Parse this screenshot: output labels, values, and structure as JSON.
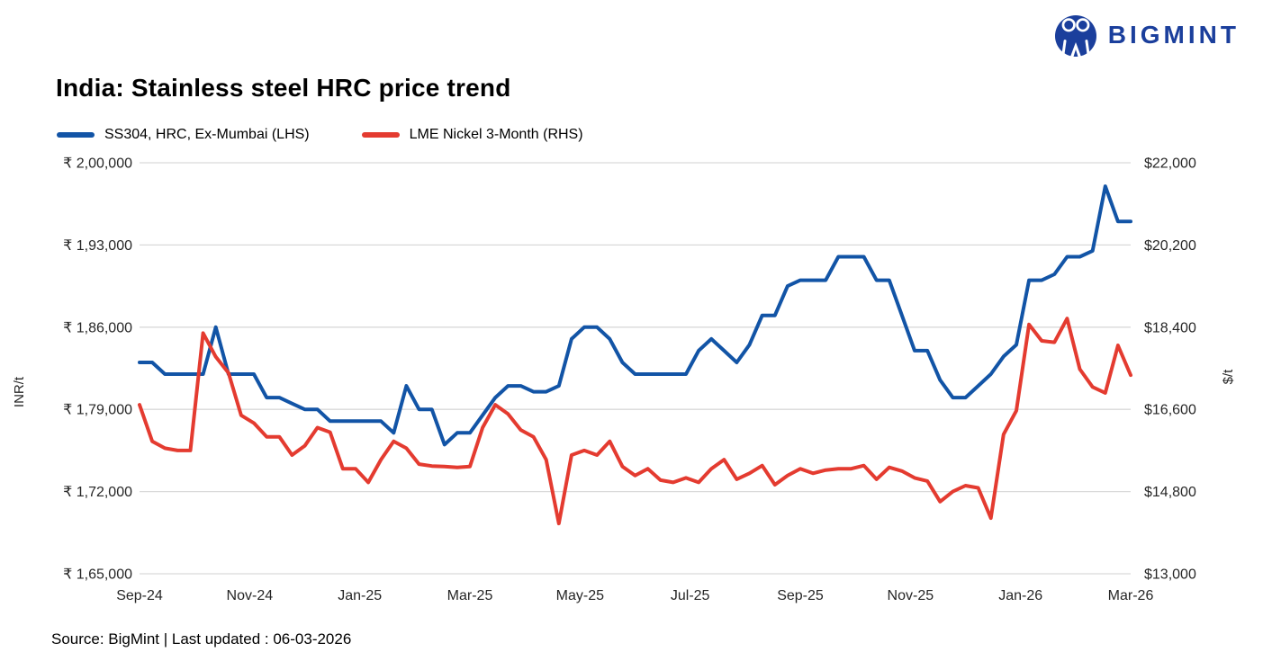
{
  "logo": {
    "text": "BIGMINT"
  },
  "footer": {
    "source": "Source: BigMint | Last updated : 06-03-2026"
  },
  "colors": {
    "line_blue": "#1254a6",
    "line_red": "#e43b30",
    "logo_navy": "#1b3f9c",
    "gridline": "#d9d9d9",
    "axis_text": "#262626"
  },
  "chart_data": {
    "type": "line",
    "title": "India: Stainless steel HRC price trend",
    "x_tick_labels": [
      "Sep-24",
      "Nov-24",
      "Jan-25",
      "Mar-25",
      "May-25",
      "Jul-25",
      "Sep-25",
      "Nov-25",
      "Jan-26",
      "Mar-26"
    ],
    "x_frequency": "weekly",
    "grid": true,
    "legend_position": "top-left",
    "left_axis": {
      "label": "INR/t",
      "min": 165000,
      "max": 200000,
      "tick_values": [
        200000,
        193000,
        186000,
        179000,
        172000,
        165000
      ],
      "tick_labels": [
        "₹ 2,00,000",
        "₹ 1,93,000",
        "₹ 1,86,000",
        "₹ 1,79,000",
        "₹ 1,72,000",
        "₹ 1,65,000"
      ]
    },
    "right_axis": {
      "label": "$/t",
      "min": 13000,
      "max": 22000,
      "tick_values": [
        22000,
        20200,
        18400,
        16600,
        14800,
        13000
      ],
      "tick_labels": [
        "$22,000",
        "$20,200",
        "$18,400",
        "$16,600",
        "$14,800",
        "$13,000"
      ]
    },
    "series": [
      {
        "id": "ss304-hrc",
        "name": "SS304, HRC, Ex-Mumbai (LHS)",
        "axis": "left",
        "color": "#1254a6",
        "values": [
          183000,
          183000,
          182000,
          182000,
          182000,
          182000,
          186000,
          182000,
          182000,
          182000,
          180000,
          180000,
          179500,
          179000,
          179000,
          178000,
          178000,
          178000,
          178000,
          178000,
          177000,
          181000,
          179000,
          179000,
          176000,
          177000,
          177000,
          178500,
          180000,
          181000,
          181000,
          180500,
          180500,
          181000,
          185000,
          186000,
          186000,
          185000,
          183000,
          182000,
          182000,
          182000,
          182000,
          182000,
          184000,
          185000,
          184000,
          183000,
          184500,
          187000,
          187000,
          189500,
          190000,
          190000,
          190000,
          192000,
          192000,
          192000,
          190000,
          190000,
          187000,
          184000,
          184000,
          181500,
          180000,
          180000,
          181000,
          182000,
          183500,
          184500,
          190000,
          190000,
          190500,
          192000,
          192000,
          192500,
          198000,
          195000,
          195000
        ]
      },
      {
        "id": "lme-nickel",
        "name": "LME Nickel 3-Month (RHS)",
        "axis": "right",
        "color": "#e43b30",
        "values": [
          16700,
          15900,
          15750,
          15700,
          15700,
          18270,
          17750,
          17400,
          16470,
          16300,
          16000,
          16000,
          15600,
          15800,
          16200,
          16100,
          15300,
          15300,
          15000,
          15500,
          15900,
          15750,
          15400,
          15360,
          15350,
          15330,
          15350,
          16200,
          16700,
          16500,
          16150,
          16000,
          15500,
          14100,
          15600,
          15700,
          15600,
          15900,
          15350,
          15150,
          15300,
          15050,
          15000,
          15100,
          15000,
          15300,
          15500,
          15070,
          15200,
          15370,
          14950,
          15150,
          15300,
          15200,
          15270,
          15300,
          15300,
          15370,
          15070,
          15330,
          15250,
          15100,
          15030,
          14580,
          14800,
          14930,
          14880,
          14220,
          16050,
          16570,
          18460,
          18100,
          18070,
          18590,
          17480,
          17090,
          16960,
          18000,
          17350
        ]
      }
    ]
  }
}
